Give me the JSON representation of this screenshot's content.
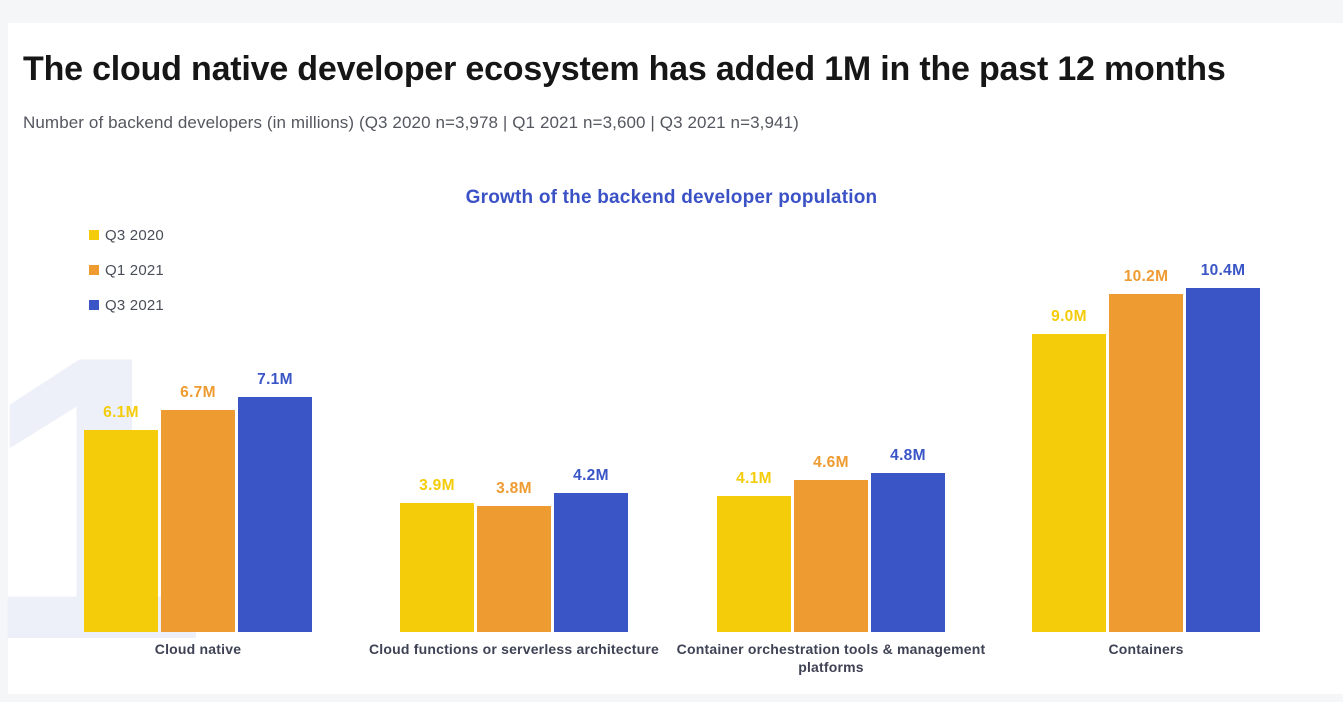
{
  "page": {
    "title": "The cloud native developer ecosystem has added 1M in the past 12 months",
    "subtitle": "Number of backend developers (in millions) (Q3 2020 n=3,978 | Q1 2021 n=3,600 | Q3 2021 n=3,941)"
  },
  "watermark": {
    "glyph": "1",
    "color": "#edf0f8"
  },
  "chart_data": {
    "type": "bar",
    "title": "Growth of the backend developer population",
    "title_color": "#3b52c6",
    "xlabel": "",
    "ylabel": "Number of backend developers (millions)",
    "ylim": [
      0,
      11
    ],
    "grid": false,
    "legend_position": "top-left",
    "categories": [
      "Cloud native",
      "Cloud functions or serverless architecture",
      "Container orchestration tools & management platforms",
      "Containers"
    ],
    "series": [
      {
        "name": "Q3 2020",
        "color": "#f5cc09",
        "values": [
          6.1,
          3.9,
          4.1,
          9.0
        ],
        "labels": [
          "6.1M",
          "3.9M",
          "4.1M",
          "9.0M"
        ]
      },
      {
        "name": "Q1 2021",
        "color": "#ee9b31",
        "values": [
          6.7,
          3.8,
          4.6,
          10.2
        ],
        "labels": [
          "6.7M",
          "3.8M",
          "4.6M",
          "10.2M"
        ]
      },
      {
        "name": "Q3 2021",
        "color": "#3a56c6",
        "values": [
          7.1,
          4.2,
          4.8,
          10.4
        ],
        "labels": [
          "7.1M",
          "4.2M",
          "4.8M",
          "10.4M"
        ]
      }
    ],
    "patterned_categories": [
      3
    ],
    "unit": "M"
  }
}
